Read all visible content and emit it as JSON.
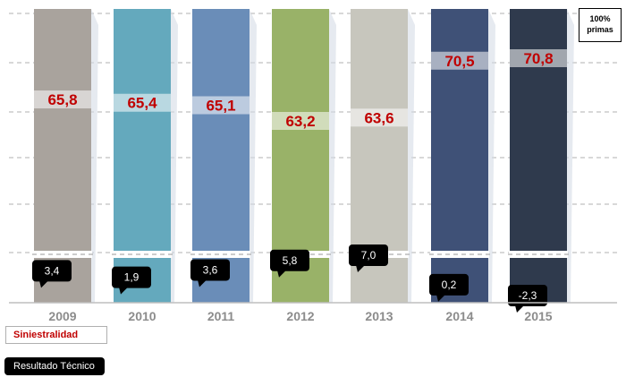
{
  "chart_data": {
    "type": "bar",
    "categories": [
      "2009",
      "2010",
      "2011",
      "2012",
      "2013",
      "2014",
      "2015"
    ],
    "series": [
      {
        "name": "Siniestralidad",
        "values": [
          65.8,
          65.4,
          65.1,
          63.2,
          63.6,
          70.5,
          70.8
        ]
      },
      {
        "name": "Resultado Técnico",
        "values": [
          3.4,
          1.9,
          3.6,
          5.8,
          7.0,
          0.2,
          -2.3
        ]
      }
    ],
    "labels": {
      "siniestralidad": [
        "65,8",
        "65,4",
        "65,1",
        "63,2",
        "63,6",
        "70,5",
        "70,8"
      ],
      "resultado": [
        "3,4",
        "1,9",
        "3,6",
        "5,8",
        "7,0",
        "0,2",
        "-2,3"
      ]
    },
    "bar_colors": [
      "#a9a39d",
      "#64a9bd",
      "#6a8db8",
      "#99b268",
      "#c7c6bd",
      "#3f5177",
      "#2f3a4d"
    ],
    "unit": "100% primas",
    "legend": [
      "Siniestralidad",
      "Resultado Técnico"
    ],
    "grid": "dashed",
    "colors": {
      "siniestralidad_text": "#c00000",
      "resultado_box": "#000000"
    }
  }
}
